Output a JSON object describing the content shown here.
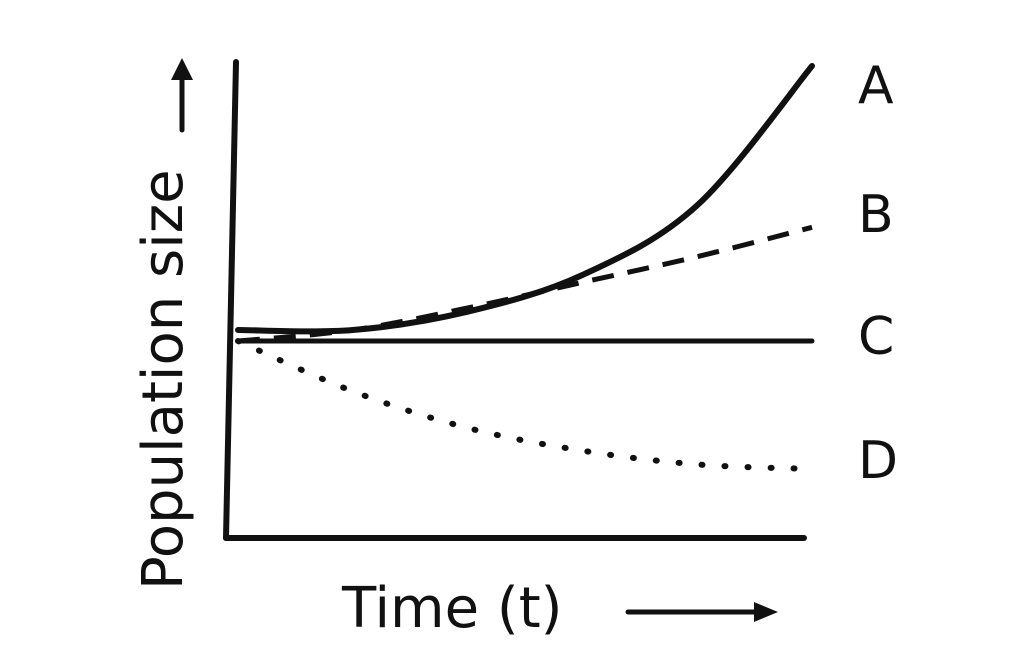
{
  "chart_data": {
    "type": "line",
    "xlabel": "Time (t)",
    "ylabel": "Population size",
    "grid": false,
    "legend": "none",
    "series": [
      {
        "name": "A",
        "style": "solid",
        "x": [
          0,
          0.2,
          0.4,
          0.6,
          0.8,
          1.0
        ],
        "values": [
          0.28,
          0.28,
          0.33,
          0.43,
          0.62,
          1.0
        ]
      },
      {
        "name": "B",
        "style": "dashed",
        "x": [
          0,
          0.2,
          0.4,
          0.6,
          0.8,
          1.0
        ],
        "values": [
          0.25,
          0.28,
          0.34,
          0.41,
          0.48,
          0.56
        ]
      },
      {
        "name": "C",
        "style": "solid",
        "x": [
          0,
          1.0
        ],
        "values": [
          0.25,
          0.25
        ]
      },
      {
        "name": "D",
        "style": "dotted",
        "x": [
          0,
          0.2,
          0.4,
          0.6,
          0.8,
          1.0
        ],
        "values": [
          0.25,
          0.14,
          0.06,
          0.01,
          -0.02,
          -0.03
        ]
      }
    ]
  }
}
